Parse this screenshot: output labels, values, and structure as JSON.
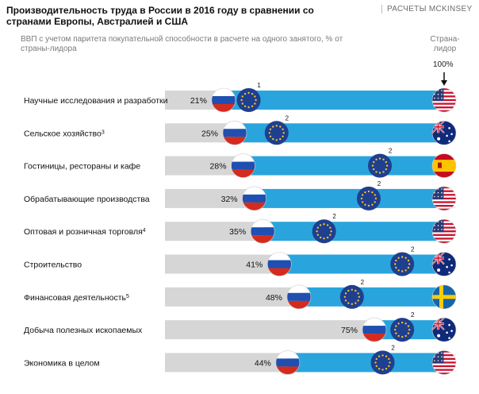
{
  "header": {
    "title": "Производительность труда в России в 2016 году в сравнении со странами Европы, Австралией и США",
    "brand": "РАСЧЕТЫ MCKINSEY",
    "subtitle": "ВВП с учетом паритета покупательной способности в расчете на одного занятого, % от страны-лидора",
    "leader_label": "Страна-лидор",
    "leader_value": "100%"
  },
  "colors": {
    "blue": "#2aa4dd",
    "grey": "#d6d6d6",
    "eu": "#1f3f8f",
    "eu_star": "#f2c230"
  },
  "chart_data": {
    "type": "bar",
    "title": "Производительность труда в России в 2016 году в сравнении со странами Европы, Австралией и США",
    "unit": "% от страны-лидера",
    "xlim": [
      0,
      100
    ],
    "rows": [
      {
        "category": "Научные исследования и разработки",
        "note": "",
        "russia": 21,
        "russia_label": "21%",
        "eu": 30,
        "eu_note": "1",
        "leader": "usa"
      },
      {
        "category": "Сельское хозяйство",
        "note": "3",
        "russia": 25,
        "russia_label": "25%",
        "eu": 40,
        "eu_note": "2",
        "leader": "australia"
      },
      {
        "category": "Гостиницы, рестораны и кафе",
        "note": "",
        "russia": 28,
        "russia_label": "28%",
        "eu": 77,
        "eu_note": "2",
        "leader": "spain"
      },
      {
        "category": "Обрабатывающие производства",
        "note": "",
        "russia": 32,
        "russia_label": "32%",
        "eu": 73,
        "eu_note": "2",
        "leader": "usa"
      },
      {
        "category": "Оптовая и розничная торговля",
        "note": "4",
        "russia": 35,
        "russia_label": "35%",
        "eu": 57,
        "eu_note": "2",
        "leader": "usa"
      },
      {
        "category": "Строительство",
        "note": "",
        "russia": 41,
        "russia_label": "41%",
        "eu": 85,
        "eu_note": "2",
        "leader": "australia"
      },
      {
        "category": "Финансовая деятельность",
        "note": "5",
        "russia": 48,
        "russia_label": "48%",
        "eu": 67,
        "eu_note": "2",
        "leader": "sweden"
      },
      {
        "category": "Добыча полезных ископаемых",
        "note": "",
        "russia": 75,
        "russia_label": "75%",
        "eu": 85,
        "eu_note": "2",
        "leader": "australia"
      },
      {
        "category": "Экономика в целом",
        "note": "",
        "russia": 44,
        "russia_label": "44%",
        "eu": 78,
        "eu_note": "2",
        "leader": "usa"
      }
    ]
  }
}
